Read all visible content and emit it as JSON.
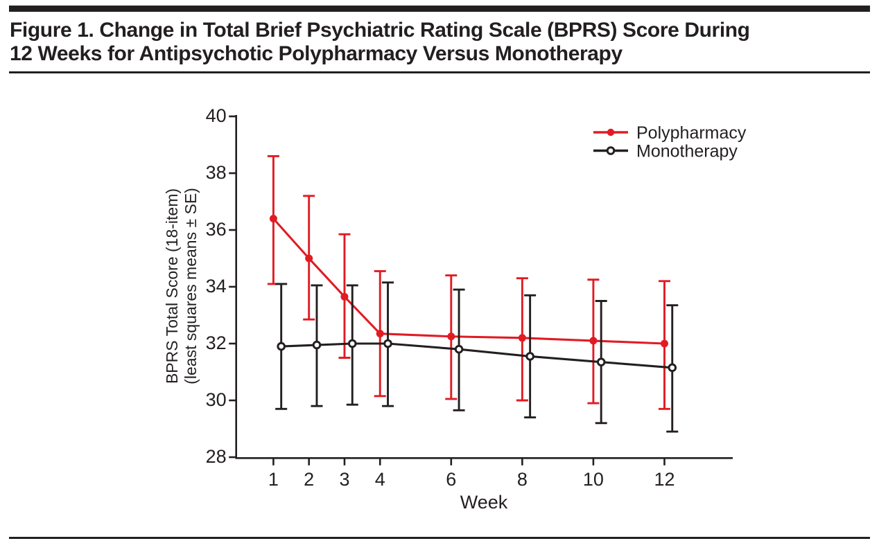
{
  "figure": {
    "title_line1": "Figure 1. Change in Total Brief Psychiatric Rating Scale (BPRS) Score During",
    "title_line2": "12 Weeks for Antipsychotic Polypharmacy Versus Monotherapy"
  },
  "colors": {
    "ink": "#231f20",
    "red": "#e11b23",
    "background": "#ffffff"
  },
  "chart_data": {
    "type": "line",
    "title": "Change in Total BPRS Score During 12 Weeks",
    "x": [
      1,
      2,
      3,
      4,
      6,
      8,
      10,
      12
    ],
    "xticks": [
      1,
      2,
      3,
      4,
      6,
      8,
      10,
      12
    ],
    "xlabel": "Week",
    "xlim": [
      0,
      14
    ],
    "ylabel_line1": "BPRS Total Score (18-item)",
    "ylabel_line2": "(least squares means ± SE)",
    "yticks": [
      28,
      30,
      32,
      34,
      36,
      38,
      40
    ],
    "ylim": [
      28,
      40
    ],
    "grid": false,
    "error_bars": true,
    "legend_position": "top-right",
    "series": [
      {
        "name": "Polypharmacy",
        "color": "#e11b23",
        "marker": "filled-circle",
        "x_offset_weeks": 0,
        "values": [
          36.4,
          35.0,
          33.65,
          32.35,
          32.25,
          32.2,
          32.1,
          32.0
        ],
        "upper": [
          38.6,
          37.2,
          35.85,
          34.55,
          34.4,
          34.3,
          34.25,
          34.2
        ],
        "lower": [
          34.1,
          32.85,
          31.5,
          30.15,
          30.05,
          30.0,
          29.9,
          29.7
        ]
      },
      {
        "name": "Monotherapy",
        "color": "#231f20",
        "marker": "open-circle",
        "x_offset_weeks": 0.22,
        "values": [
          31.9,
          31.95,
          32.0,
          32.0,
          31.8,
          31.55,
          31.35,
          31.15
        ],
        "upper": [
          34.1,
          34.05,
          34.05,
          34.15,
          33.9,
          33.7,
          33.5,
          33.35
        ],
        "lower": [
          29.7,
          29.8,
          29.85,
          29.8,
          29.65,
          29.4,
          29.2,
          28.9
        ]
      }
    ]
  }
}
